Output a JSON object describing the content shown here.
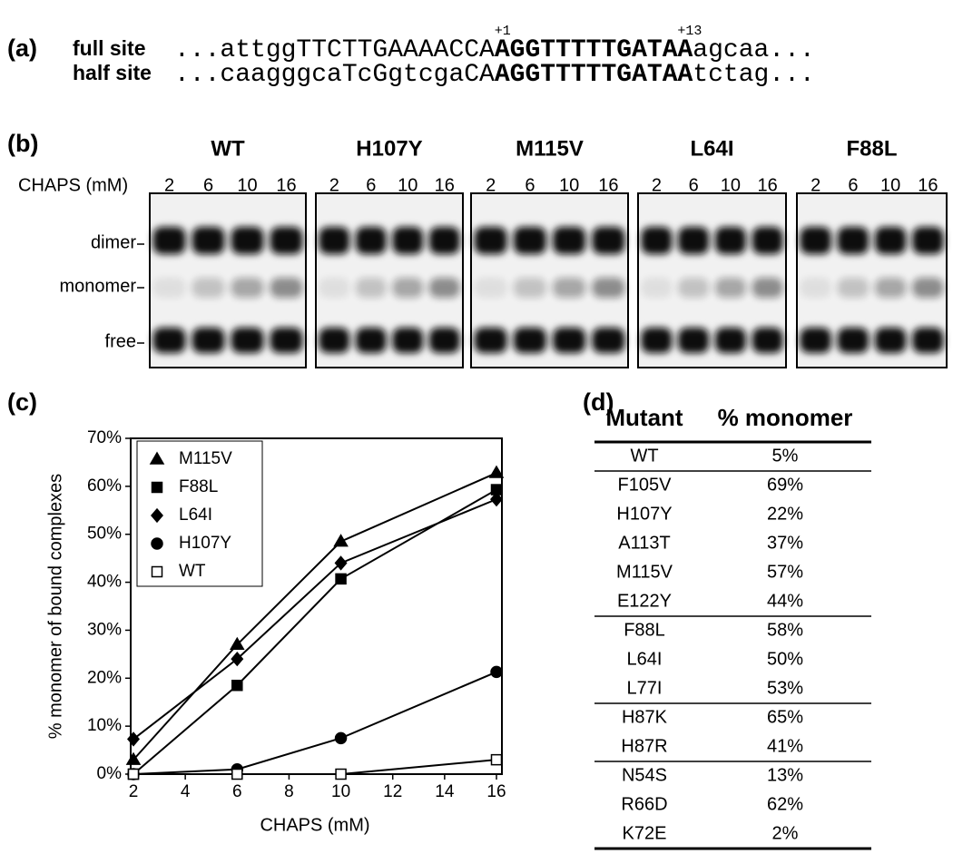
{
  "panel_a": {
    "label": "(a)",
    "positions": [
      "+1",
      "+13"
    ],
    "rows": [
      {
        "name": "full site",
        "prefix": "...attggTTCTTGAAAACCA",
        "core": "AGGTTTTTGATAA",
        "suffix": "agcaa..."
      },
      {
        "name": "half site",
        "prefix": "...caagggcaTcGgtcgaCA",
        "core": "AGGTTTTTGATAA",
        "suffix": "tctag..."
      }
    ]
  },
  "panel_b": {
    "label": "(b)",
    "axis_label": "CHAPS (mM)",
    "bands": [
      "dimer",
      "monomer",
      "free"
    ],
    "gels": [
      {
        "name": "WT",
        "lanes": [
          "2",
          "6",
          "10",
          "16"
        ]
      },
      {
        "name": "H107Y",
        "lanes": [
          "2",
          "6",
          "10",
          "16"
        ]
      },
      {
        "name": "M115V",
        "lanes": [
          "2",
          "6",
          "10",
          "16"
        ]
      },
      {
        "name": "L64I",
        "lanes": [
          "2",
          "6",
          "10",
          "16"
        ]
      },
      {
        "name": "F88L",
        "lanes": [
          "2",
          "6",
          "10",
          "16"
        ]
      }
    ]
  },
  "panel_c": {
    "label": "(c)"
  },
  "chart_data": {
    "type": "line",
    "x_label": "CHAPS (mM)",
    "y_label": "% monomer of bound complexes",
    "x": [
      2,
      6,
      10,
      16
    ],
    "xlim": [
      2,
      16
    ],
    "xticks": [
      2,
      4,
      6,
      8,
      10,
      12,
      14,
      16
    ],
    "ylim": [
      0,
      70
    ],
    "yticks": [
      {
        "value": 0,
        "label": "0%"
      },
      {
        "value": 10,
        "label": "10%"
      },
      {
        "value": 20,
        "label": "20%"
      },
      {
        "value": 30,
        "label": "30%"
      },
      {
        "value": 40,
        "label": "40%"
      },
      {
        "value": 50,
        "label": "50%"
      },
      {
        "value": 60,
        "label": "60%"
      },
      {
        "value": 70,
        "label": "70%"
      }
    ],
    "legend": "upper left",
    "series": [
      {
        "name": "M115V",
        "color": "#000000",
        "fill": "#000000",
        "marker": "triangle",
        "values": [
          3,
          27,
          48.5,
          62.8
        ]
      },
      {
        "name": "F88L",
        "color": "#000000",
        "fill": "#000000",
        "marker": "square",
        "values": [
          0,
          18.5,
          40.7,
          59.3
        ]
      },
      {
        "name": "L64I",
        "color": "#000000",
        "fill": "#000000",
        "marker": "diamond",
        "values": [
          7.3,
          24,
          44,
          57.3
        ]
      },
      {
        "name": "H107Y",
        "color": "#000000",
        "fill": "#000000",
        "marker": "circle",
        "values": [
          0,
          1,
          7.5,
          21.3
        ]
      },
      {
        "name": "WT",
        "color": "#000000",
        "fill": "#ffffff",
        "marker": "square",
        "values": [
          0,
          0,
          0,
          3
        ]
      }
    ]
  },
  "panel_d": {
    "label": "(d)",
    "header": [
      "Mutant",
      "% monomer"
    ],
    "groups": [
      [
        [
          "WT",
          "5%"
        ]
      ],
      [
        [
          "F105V",
          "69%"
        ],
        [
          "H107Y",
          "22%"
        ],
        [
          "A113T",
          "37%"
        ],
        [
          "M115V",
          "57%"
        ],
        [
          "E122Y",
          "44%"
        ]
      ],
      [
        [
          "F88L",
          "58%"
        ],
        [
          "L64I",
          "50%"
        ],
        [
          "L77I",
          "53%"
        ]
      ],
      [
        [
          "H87K",
          "65%"
        ],
        [
          "H87R",
          "41%"
        ]
      ],
      [
        [
          "N54S",
          "13%"
        ],
        [
          "R66D",
          "62%"
        ],
        [
          "K72E",
          "2%"
        ]
      ]
    ]
  }
}
